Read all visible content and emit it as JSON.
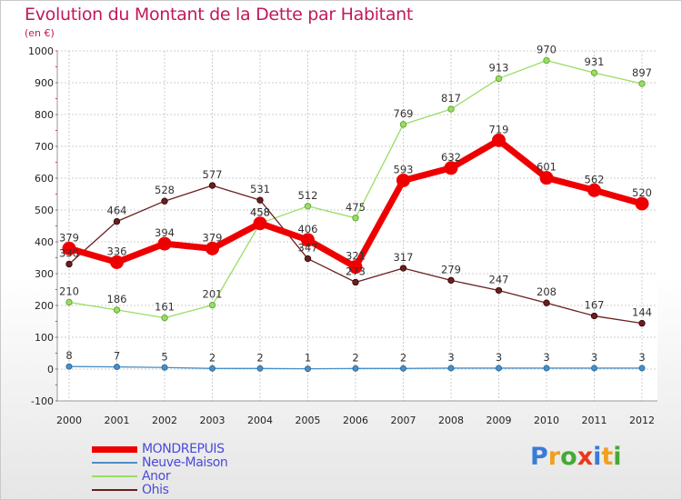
{
  "header": {
    "title": "Evolution du Montant de la Dette par Habitant",
    "subtitle": "(en €)"
  },
  "colors": {
    "title": "#c2185b",
    "grid": "#cccccc",
    "axis_text": "#222222",
    "label_text": "#333333"
  },
  "chart_data": {
    "type": "line",
    "title": "Evolution du Montant de la Dette par Habitant",
    "subtitle": "(en €)",
    "xlabel": "",
    "ylabel": "",
    "x": [
      "2000",
      "2001",
      "2002",
      "2003",
      "2004",
      "2005",
      "2006",
      "2007",
      "2008",
      "2009",
      "2010",
      "2011",
      "2012"
    ],
    "ylim": [
      -100,
      1000
    ],
    "yticks": [
      -100,
      0,
      100,
      200,
      300,
      400,
      500,
      600,
      700,
      800,
      900,
      1000
    ],
    "grid": true,
    "legend_position": "bottom-left",
    "series": [
      {
        "name": "MONDREPUIS",
        "color": "#ee0000",
        "legend_text_color": "#4a4adb",
        "values": [
          379,
          336,
          394,
          379,
          458,
          406,
          321,
          593,
          632,
          719,
          601,
          562,
          520
        ]
      },
      {
        "name": "Neuve-Maison",
        "color": "#4a90c8",
        "values": [
          8,
          7,
          5,
          2,
          2,
          1,
          2,
          2,
          3,
          3,
          3,
          3,
          3
        ]
      },
      {
        "name": "Anor",
        "color": "#99dd66",
        "values": [
          210,
          186,
          161,
          201,
          458,
          512,
          475,
          769,
          817,
          913,
          970,
          931,
          897
        ]
      },
      {
        "name": "Ohis",
        "color": "#6b1f1f",
        "values": [
          330,
          464,
          528,
          577,
          531,
          347,
          273,
          317,
          279,
          247,
          208,
          167,
          144
        ]
      }
    ]
  },
  "logo": {
    "letters": [
      "P",
      "r",
      "o",
      "x",
      "i",
      "t",
      "i"
    ],
    "colors": [
      "#3a7bd5",
      "#f0a020",
      "#44aa33",
      "#e63a1e",
      "#3a7bd5",
      "#f0a020",
      "#44aa33"
    ]
  }
}
